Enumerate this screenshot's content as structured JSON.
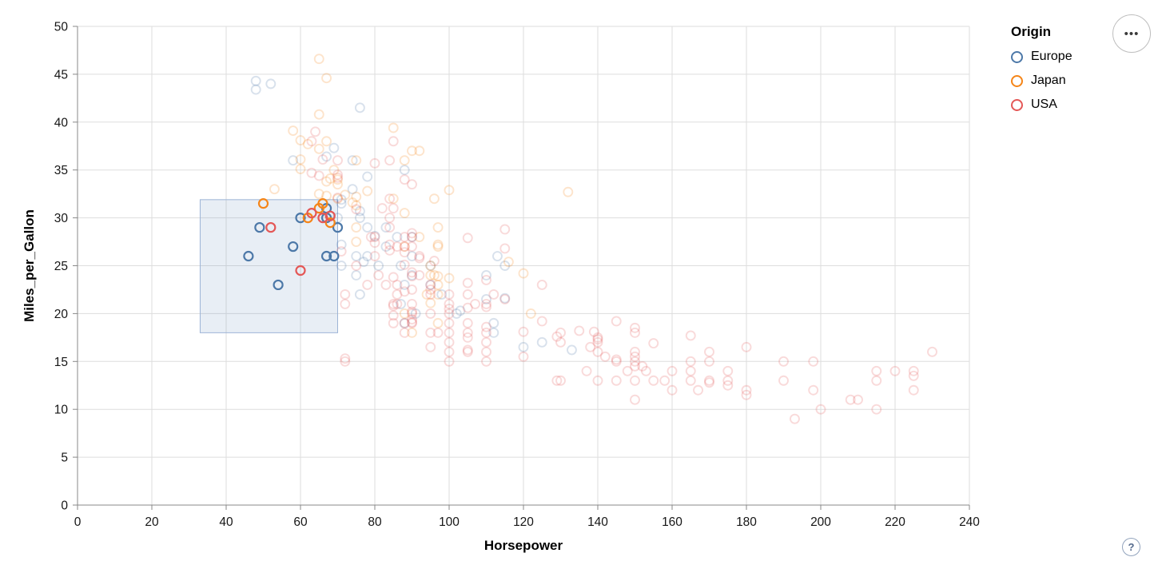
{
  "legend": {
    "title": "Origin",
    "items": [
      {
        "label": "Europe",
        "color": "#4c78a8"
      },
      {
        "label": "Japan",
        "color": "#f58518"
      },
      {
        "label": "USA",
        "color": "#e45756"
      }
    ]
  },
  "controls": {
    "options_icon": "•••",
    "help_icon": "?"
  },
  "chart_data": {
    "type": "scatter",
    "title": "",
    "xlabel": "Horsepower",
    "ylabel": "Miles_per_Gallon",
    "xlim": [
      0,
      240
    ],
    "ylim": [
      0,
      50
    ],
    "x_ticks": [
      0,
      20,
      40,
      60,
      80,
      100,
      120,
      140,
      160,
      180,
      200,
      220,
      240
    ],
    "y_ticks": [
      0,
      5,
      10,
      15,
      20,
      25,
      30,
      35,
      40,
      45,
      50
    ],
    "grid": true,
    "legend_position": "top-right",
    "brush": {
      "x": [
        33,
        70
      ],
      "y": [
        18,
        31.9
      ]
    },
    "colors": {
      "grid": "#dddddd",
      "axis": "#888888",
      "brush_fill": "#6f93c2",
      "brush_stroke": "#9db4d6"
    },
    "series": [
      {
        "name": "Europe",
        "color": "#4c78a8",
        "selected": [
          [
            46,
            26
          ],
          [
            49,
            29
          ],
          [
            54,
            23
          ],
          [
            58,
            27
          ],
          [
            60,
            30
          ],
          [
            67,
            26
          ],
          [
            69,
            26
          ],
          [
            67,
            30
          ],
          [
            67,
            31
          ],
          [
            70,
            29
          ]
        ],
        "unselected": [
          [
            48,
            44.3
          ],
          [
            48,
            43.4
          ],
          [
            52,
            44
          ],
          [
            76,
            41.5
          ],
          [
            58,
            36
          ],
          [
            69,
            37.3
          ],
          [
            67,
            36.4
          ],
          [
            88,
            35
          ],
          [
            74,
            36
          ],
          [
            74,
            33
          ],
          [
            78,
            34.3
          ],
          [
            87,
            25
          ],
          [
            90,
            24
          ],
          [
            95,
            25
          ],
          [
            113,
            26
          ],
          [
            90,
            28
          ],
          [
            70,
            30
          ],
          [
            76,
            30
          ],
          [
            112,
            18
          ],
          [
            76,
            22
          ],
          [
            87,
            21
          ],
          [
            90,
            26
          ],
          [
            75,
            24
          ],
          [
            91,
            20
          ],
          [
            112,
            19
          ],
          [
            110,
            24
          ],
          [
            83,
            29
          ],
          [
            78,
            26
          ],
          [
            75,
            26
          ],
          [
            71,
            25
          ],
          [
            95,
            23
          ],
          [
            88,
            23
          ],
          [
            98,
            22
          ],
          [
            115,
            25
          ],
          [
            86,
            28
          ],
          [
            81,
            25
          ],
          [
            83,
            27
          ],
          [
            102,
            20
          ],
          [
            88,
            19
          ],
          [
            120,
            16.5
          ],
          [
            77,
            25.4
          ],
          [
            71,
            27.2
          ],
          [
            78,
            29
          ],
          [
            110,
            21.5
          ],
          [
            125,
            17
          ],
          [
            115,
            21.6
          ],
          [
            133,
            16.2
          ],
          [
            71,
            31.5
          ],
          [
            71,
            31.9
          ],
          [
            80,
            28.1
          ],
          [
            76,
            30.7
          ],
          [
            103,
            20.3
          ]
        ]
      },
      {
        "name": "Japan",
        "color": "#f58518",
        "selected": [
          [
            50,
            31.5
          ],
          [
            62,
            30
          ],
          [
            65,
            31
          ],
          [
            66,
            31.5
          ],
          [
            68,
            29.5
          ]
        ],
        "unselected": [
          [
            95,
            24
          ],
          [
            88,
            27
          ],
          [
            95,
            25
          ],
          [
            92,
            28
          ],
          [
            97,
            19
          ],
          [
            97,
            23
          ],
          [
            94,
            22
          ],
          [
            90,
            18
          ],
          [
            88,
            20
          ],
          [
            122,
            20
          ],
          [
            96,
            24
          ],
          [
            97,
            29
          ],
          [
            75,
            29
          ],
          [
            65,
            32.5
          ],
          [
            97,
            27
          ],
          [
            85,
            39.4
          ],
          [
            60,
            36.1
          ],
          [
            78,
            32.8
          ],
          [
            85,
            32
          ],
          [
            70,
            32
          ],
          [
            75,
            27.5
          ],
          [
            97,
            27.2
          ],
          [
            95,
            21.1
          ],
          [
            97,
            23.9
          ],
          [
            132,
            32.7
          ],
          [
            100,
            23.7
          ],
          [
            72,
            32.4
          ],
          [
            65,
            46.6
          ],
          [
            65,
            40.8
          ],
          [
            60,
            38.1
          ],
          [
            65,
            37.2
          ],
          [
            67,
            44.6
          ],
          [
            67,
            33.8
          ],
          [
            90,
            37
          ],
          [
            75,
            31.3
          ],
          [
            92,
            37
          ],
          [
            75,
            32.2
          ],
          [
            74,
            31.6
          ],
          [
            67,
            38
          ],
          [
            100,
            32.9
          ],
          [
            88,
            36
          ],
          [
            75,
            36
          ],
          [
            70,
            34
          ],
          [
            116,
            25.4
          ],
          [
            120,
            24.2
          ],
          [
            96,
            32
          ],
          [
            60,
            35.1
          ],
          [
            58,
            39.1
          ],
          [
            62,
            37.7
          ],
          [
            68,
            34.1
          ],
          [
            67,
            32.3
          ],
          [
            97,
            22
          ],
          [
            53,
            33
          ],
          [
            69,
            35
          ],
          [
            70,
            33.5
          ],
          [
            88,
            30.5
          ]
        ]
      },
      {
        "name": "USA",
        "color": "#e45756",
        "selected": [
          [
            52,
            29
          ],
          [
            60,
            24.5
          ],
          [
            63,
            30.5
          ],
          [
            66,
            30
          ],
          [
            68,
            30.2
          ]
        ],
        "unselected": [
          [
            130,
            18
          ],
          [
            165,
            15
          ],
          [
            150,
            18
          ],
          [
            150,
            16
          ],
          [
            140,
            17
          ],
          [
            198,
            15
          ],
          [
            220,
            14
          ],
          [
            215,
            14
          ],
          [
            225,
            14
          ],
          [
            190,
            15
          ],
          [
            170,
            15
          ],
          [
            160,
            14
          ],
          [
            150,
            15
          ],
          [
            225,
            13.5
          ],
          [
            95,
            22
          ],
          [
            97,
            18
          ],
          [
            85,
            21
          ],
          [
            90,
            21
          ],
          [
            215,
            10
          ],
          [
            200,
            10
          ],
          [
            210,
            11
          ],
          [
            193,
            9
          ],
          [
            90,
            28
          ],
          [
            100,
            19
          ],
          [
            105,
            16
          ],
          [
            100,
            17
          ],
          [
            88,
            19
          ],
          [
            100,
            18
          ],
          [
            165,
            14
          ],
          [
            175,
            14
          ],
          [
            153,
            14
          ],
          [
            150,
            14.5
          ],
          [
            180,
            12
          ],
          [
            170,
            13
          ],
          [
            175,
            13
          ],
          [
            110,
            18
          ],
          [
            72,
            22
          ],
          [
            88,
            18
          ],
          [
            86,
            23
          ],
          [
            90,
            20
          ],
          [
            86,
            21
          ],
          [
            165,
            13
          ],
          [
            150,
            13
          ],
          [
            208,
            11
          ],
          [
            155,
            13
          ],
          [
            160,
            12
          ],
          [
            190,
            13
          ],
          [
            130,
            13
          ],
          [
            140,
            13
          ],
          [
            86,
            22
          ],
          [
            80,
            28
          ],
          [
            145,
            13
          ],
          [
            137,
            14
          ],
          [
            150,
            15.5
          ],
          [
            198,
            12
          ],
          [
            158,
            13
          ],
          [
            215,
            13
          ],
          [
            225,
            12
          ],
          [
            175,
            12.5
          ],
          [
            105,
            18
          ],
          [
            100,
            16
          ],
          [
            95,
            23
          ],
          [
            150,
            11
          ],
          [
            167,
            12
          ],
          [
            170,
            12.8
          ],
          [
            180,
            11.5
          ],
          [
            72,
            21
          ],
          [
            85,
            19
          ],
          [
            107,
            21
          ],
          [
            145,
            15
          ],
          [
            230,
            16
          ],
          [
            95,
            20
          ],
          [
            100,
            15
          ],
          [
            80,
            26
          ],
          [
            75,
            25
          ],
          [
            110,
            16
          ],
          [
            105,
            17.5
          ],
          [
            140,
            16
          ],
          [
            95,
            22.5
          ],
          [
            140,
            17.5
          ],
          [
            120,
            15.5
          ],
          [
            152,
            14.5
          ],
          [
            100,
            22
          ],
          [
            105,
            22
          ],
          [
            81,
            24
          ],
          [
            90,
            22.5
          ],
          [
            72,
            15
          ],
          [
            72,
            15.3
          ],
          [
            170,
            16
          ],
          [
            145,
            15.2
          ],
          [
            148,
            14
          ],
          [
            110,
            17
          ],
          [
            105,
            16.2
          ],
          [
            110,
            15
          ],
          [
            95,
            18
          ],
          [
            110,
            21
          ],
          [
            129,
            13
          ],
          [
            83,
            23
          ],
          [
            100,
            20
          ],
          [
            78,
            23
          ],
          [
            96,
            25.5
          ],
          [
            71,
            26.5
          ],
          [
            90,
            19
          ],
          [
            88,
            25.1
          ],
          [
            100,
            20.5
          ],
          [
            90,
            19.4
          ],
          [
            105,
            20.6
          ],
          [
            85,
            20.8
          ],
          [
            110,
            18.6
          ],
          [
            120,
            18.1
          ],
          [
            145,
            19.2
          ],
          [
            165,
            17.7
          ],
          [
            139,
            18.1
          ],
          [
            140,
            17.3
          ],
          [
            75,
            30.9
          ],
          [
            105,
            23.2
          ],
          [
            85,
            23.8
          ],
          [
            115,
            21.5
          ],
          [
            85,
            19.8
          ],
          [
            88,
            22.3
          ],
          [
            90,
            20.2
          ],
          [
            110,
            20.7
          ],
          [
            130,
            17
          ],
          [
            129,
            17.6
          ],
          [
            138,
            16.5
          ],
          [
            135,
            18.2
          ],
          [
            155,
            16.9
          ],
          [
            142,
            15.5
          ],
          [
            125,
            19.2
          ],
          [
            150,
            18.5
          ],
          [
            80,
            35.7
          ],
          [
            80,
            27.4
          ],
          [
            125,
            23
          ],
          [
            90,
            23.9
          ],
          [
            70,
            34.2
          ],
          [
            70,
            34.5
          ],
          [
            90,
            28.4
          ],
          [
            115,
            28.8
          ],
          [
            115,
            26.8
          ],
          [
            90,
            33.5
          ],
          [
            70,
            32.1
          ],
          [
            88,
            26.4
          ],
          [
            90,
            24.3
          ],
          [
            90,
            19.1
          ],
          [
            105,
            27.9
          ],
          [
            84,
            27.2
          ],
          [
            84,
            26.6
          ],
          [
            92,
            25.8
          ],
          [
            110,
            23.5
          ],
          [
            84,
            30
          ],
          [
            64,
            39
          ],
          [
            63,
            34.7
          ],
          [
            65,
            34.4
          ],
          [
            88,
            28
          ],
          [
            88,
            27
          ],
          [
            88,
            34
          ],
          [
            85,
            31
          ],
          [
            84,
            29
          ],
          [
            90,
            27
          ],
          [
            92,
            24
          ],
          [
            63,
            38
          ],
          [
            70,
            36
          ],
          [
            84,
            36
          ],
          [
            86,
            27
          ],
          [
            84,
            32
          ],
          [
            79,
            28
          ],
          [
            82,
            31
          ],
          [
            85,
            38
          ],
          [
            92,
            26
          ],
          [
            112,
            22
          ],
          [
            66,
            36.1
          ],
          [
            100,
            21
          ],
          [
            105,
            19
          ],
          [
            95,
            16.5
          ],
          [
            180,
            16.5
          ]
        ]
      }
    ]
  }
}
